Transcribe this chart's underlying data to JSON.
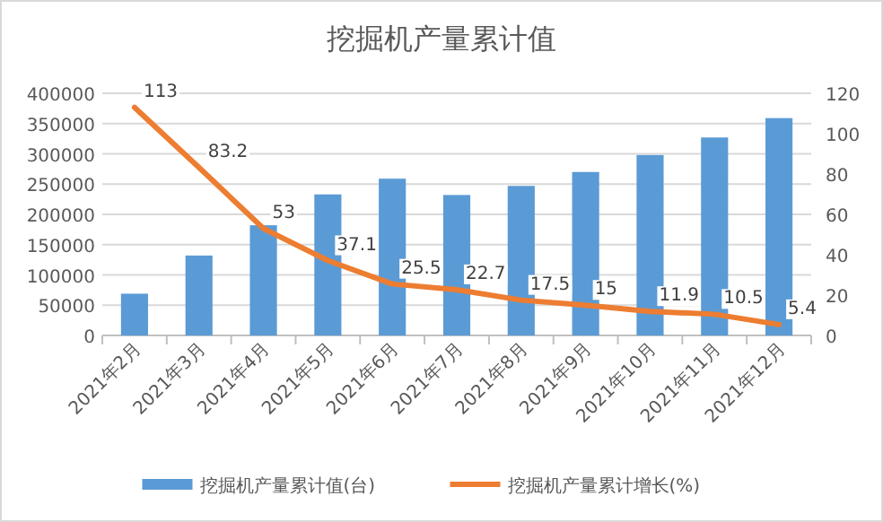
{
  "chart_data": {
    "type": "bar",
    "title": "挖掘机产量累计值",
    "categories": [
      "2021年2月",
      "2021年3月",
      "2021年4月",
      "2021年5月",
      "2021年6月",
      "2021年7月",
      "2021年8月",
      "2021年9月",
      "2021年10月",
      "2021年11月",
      "2021年12月"
    ],
    "series": [
      {
        "name": "挖掘机产量累计值(台)",
        "color": "#5b9bd5",
        "values": [
          69000,
          132000,
          182000,
          233000,
          259000,
          232000,
          247000,
          270000,
          298000,
          327000,
          359000
        ]
      },
      {
        "name": "挖掘机产量累计增长(%)",
        "type": "line",
        "axis": "y2",
        "color": "#ed7d31",
        "values": [
          113,
          83.2,
          53,
          37.1,
          25.5,
          22.7,
          17.5,
          15,
          11.9,
          10.5,
          5.4
        ],
        "value_labels": [
          "113",
          "83.2",
          "53",
          "37.1",
          "25.5",
          "22.7",
          "17.5",
          "15",
          "11.9",
          "10.5",
          "5.4"
        ]
      }
    ],
    "ylim": [
      0,
      400000
    ],
    "yticks": [
      0,
      50000,
      100000,
      150000,
      200000,
      250000,
      300000,
      350000,
      400000
    ],
    "y2lim": [
      0,
      120
    ],
    "y2ticks": [
      0,
      20,
      40,
      60,
      80,
      100,
      120
    ],
    "grid": "y",
    "legend": "bottom",
    "line_style": "solid"
  }
}
